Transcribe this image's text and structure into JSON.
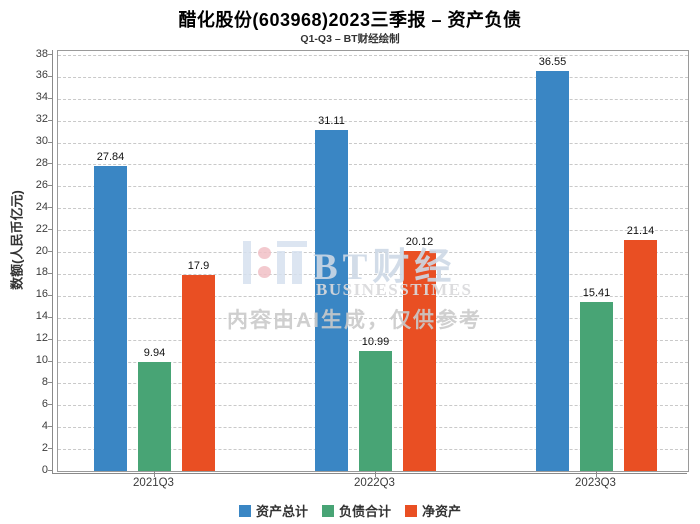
{
  "watermark": {
    "brand": "BT财经",
    "brand_sub": "BUSINESSTIMES",
    "disclaimer": "内容由AI生成，仅供参考"
  },
  "chart_data": {
    "type": "bar",
    "title": "醋化股份(603968)2023三季报 – 资产负债",
    "subtitle": "Q1-Q3 – BT财经绘制",
    "categories": [
      "2021Q3",
      "2022Q3",
      "2023Q3"
    ],
    "series": [
      {
        "name": "资产总计",
        "color": "#3a86c4",
        "values": [
          27.84,
          31.11,
          36.55
        ]
      },
      {
        "name": "负债合计",
        "color": "#48a475",
        "values": [
          9.94,
          10.99,
          15.41
        ]
      },
      {
        "name": "净资产",
        "color": "#e94f23",
        "values": [
          17.9,
          20.12,
          21.14
        ]
      }
    ],
    "xlabel": "",
    "ylabel": "数额(人民币亿元)",
    "ylim": [
      0,
      38
    ],
    "yticks": [
      0,
      2,
      4,
      6,
      8,
      10,
      12,
      14,
      16,
      18,
      20,
      22,
      24,
      26,
      28,
      30,
      32,
      34,
      36,
      38
    ],
    "grid": true,
    "grid_style": "dashed",
    "legend_position": "bottom"
  }
}
